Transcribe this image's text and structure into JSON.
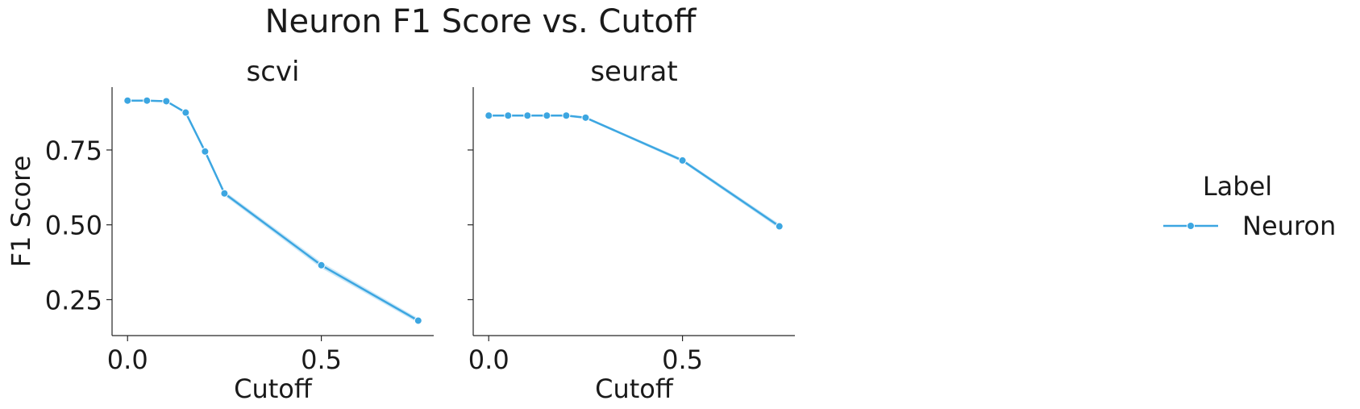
{
  "title": "Neuron F1 Score vs. Cutoff",
  "colors": {
    "series": "#3ca6e1",
    "band": "#a9d8f3",
    "axis": "#262626",
    "text": "#1a1a1a"
  },
  "legend": {
    "title": "Label",
    "placement": "right"
  },
  "chart_data": [
    {
      "type": "line",
      "title": "scvi",
      "xlabel": "Cutoff",
      "ylabel": "F1 Score",
      "xlim": [
        -0.04,
        0.79
      ],
      "ylim": [
        0.13,
        0.96
      ],
      "xticks": [
        0.0,
        0.5
      ],
      "xtick_labels": [
        "0.0",
        "0.5"
      ],
      "yticks": [
        0.25,
        0.5,
        0.75
      ],
      "ytick_labels": [
        "0.25",
        "0.50",
        "0.75"
      ],
      "series": [
        {
          "name": "Neuron",
          "x": [
            0.0,
            0.05,
            0.1,
            0.15,
            0.2,
            0.25,
            0.5,
            0.75
          ],
          "y": [
            0.915,
            0.915,
            0.913,
            0.875,
            0.745,
            0.605,
            0.365,
            0.18
          ],
          "band": [
            0.003,
            0.003,
            0.003,
            0.004,
            0.006,
            0.008,
            0.01,
            0.008
          ]
        }
      ]
    },
    {
      "type": "line",
      "title": "seurat",
      "xlabel": "Cutoff",
      "ylabel": "",
      "xlim": [
        -0.04,
        0.79
      ],
      "ylim": [
        0.13,
        0.96
      ],
      "xticks": [
        0.0,
        0.5
      ],
      "xtick_labels": [
        "0.0",
        "0.5"
      ],
      "yticks": [
        0.25,
        0.5,
        0.75
      ],
      "ytick_labels": [],
      "series": [
        {
          "name": "Neuron",
          "x": [
            0.0,
            0.05,
            0.1,
            0.15,
            0.2,
            0.25,
            0.5,
            0.75
          ],
          "y": [
            0.865,
            0.865,
            0.865,
            0.865,
            0.865,
            0.858,
            0.715,
            0.495
          ],
          "band": [
            0.003,
            0.003,
            0.003,
            0.003,
            0.003,
            0.004,
            0.006,
            0.008
          ]
        }
      ]
    }
  ]
}
